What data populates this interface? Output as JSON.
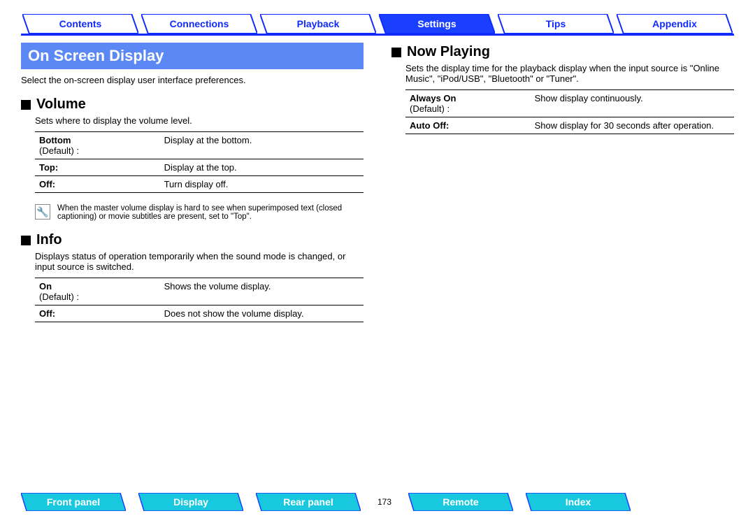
{
  "colors": {
    "blue_accent": "#0f2bff",
    "tab_fill_active": "#1a3fff",
    "tab_border": "#0f2bff",
    "header_bg": "#5b88f4",
    "btn_fill": "#18c8de",
    "btn_border": "#1a3fff"
  },
  "nav": {
    "tabs": [
      {
        "label": "Contents",
        "active": false
      },
      {
        "label": "Connections",
        "active": false
      },
      {
        "label": "Playback",
        "active": false
      },
      {
        "label": "Settings",
        "active": true
      },
      {
        "label": "Tips",
        "active": false
      },
      {
        "label": "Appendix",
        "active": false
      }
    ]
  },
  "main": {
    "header": "On Screen Display",
    "intro": "Select the on-screen display user interface preferences."
  },
  "sections": {
    "volume": {
      "title": "Volume",
      "desc": "Sets where to display the volume level.",
      "rows": [
        {
          "key": "Bottom",
          "default": "(Default) :",
          "val": "Display at the bottom."
        },
        {
          "key": "Top:",
          "default": "",
          "val": "Display at the top."
        },
        {
          "key": "Off:",
          "default": "",
          "val": "Turn display off."
        }
      ],
      "note": "When the master volume display is hard to see when superimposed text (closed captioning) or movie subtitles are present, set to \"Top\"."
    },
    "info": {
      "title": "Info",
      "desc": "Displays status of operation temporarily when the sound mode is changed, or input source is switched.",
      "rows": [
        {
          "key": "On",
          "default": "(Default) :",
          "val": "Shows the volume display."
        },
        {
          "key": "Off:",
          "default": "",
          "val": "Does not show the volume display."
        }
      ]
    },
    "nowplaying": {
      "title": "Now Playing",
      "desc": "Sets the display time for the playback display when the input source is \"Online Music\", \"iPod/USB\", \"Bluetooth\" or \"Tuner\".",
      "rows": [
        {
          "key": "Always On",
          "default": "(Default) :",
          "val": "Show display continuously."
        },
        {
          "key": "Auto Off:",
          "default": "",
          "val": "Show display for 30 seconds after operation."
        }
      ]
    }
  },
  "footer": {
    "buttons": [
      "Front panel",
      "Display",
      "Rear panel"
    ],
    "page": "173",
    "buttons2": [
      "Remote",
      "Index"
    ]
  }
}
